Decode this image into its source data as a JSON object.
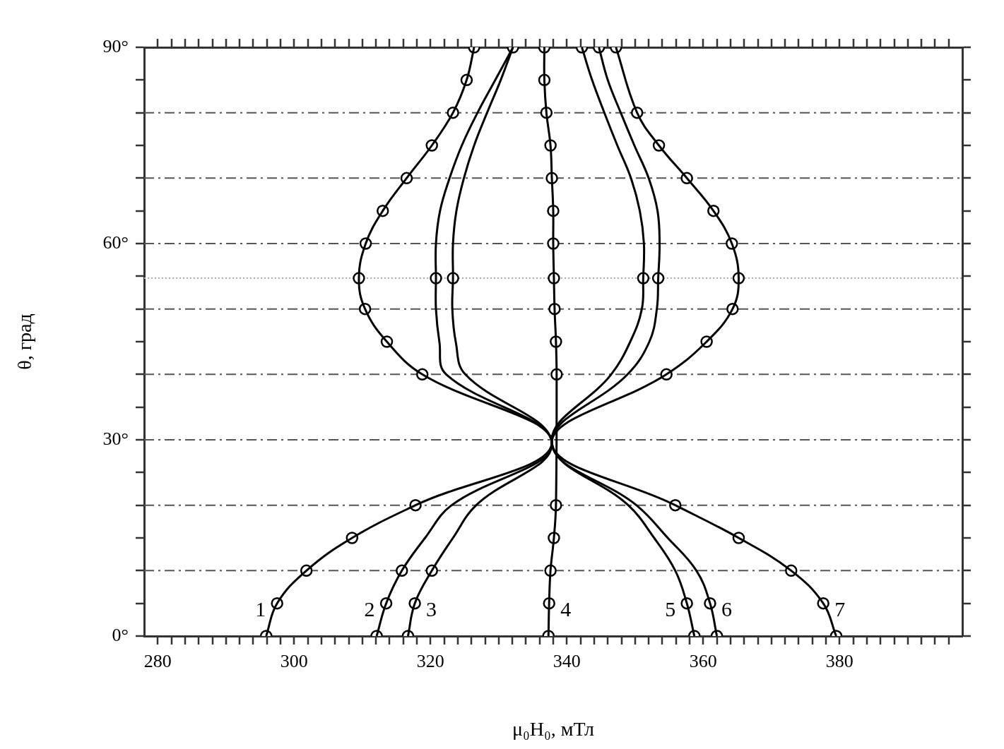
{
  "chart_data": {
    "type": "line",
    "xlabel": "μ₀H₀, мТл",
    "ylabel": "θ, град",
    "xlim": [
      278,
      398
    ],
    "xticks": [
      280,
      {
        "value": 282,
        "label": null
      },
      {
        "value": 284,
        "label": null
      },
      {
        "value": 286,
        "label": null
      },
      {
        "value": 288,
        "label": null
      },
      {
        "value": 290,
        "label": null
      },
      {
        "value": 292,
        "label": null
      },
      {
        "value": 294,
        "label": null
      },
      {
        "value": 296,
        "label": null
      },
      {
        "value": 298,
        "label": null
      },
      300,
      {
        "value": 302,
        "label": null
      },
      {
        "value": 304,
        "label": null
      },
      {
        "value": 306,
        "label": null
      },
      {
        "value": 308,
        "label": null
      },
      {
        "value": 310,
        "label": null
      },
      {
        "value": 312,
        "label": null
      },
      {
        "value": 314,
        "label": null
      },
      {
        "value": 316,
        "label": null
      },
      {
        "value": 318,
        "label": null
      },
      320,
      {
        "value": 322,
        "label": null
      },
      {
        "value": 324,
        "label": null
      },
      {
        "value": 326,
        "label": null
      },
      {
        "value": 328,
        "label": null
      },
      {
        "value": 330,
        "label": null
      },
      {
        "value": 332,
        "label": null
      },
      {
        "value": 334,
        "label": null
      },
      {
        "value": 336,
        "label": null
      },
      {
        "value": 338,
        "label": null
      },
      340,
      {
        "value": 342,
        "label": null
      },
      {
        "value": 344,
        "label": null
      },
      {
        "value": 346,
        "label": null
      },
      {
        "value": 348,
        "label": null
      },
      {
        "value": 350,
        "label": null
      },
      {
        "value": 352,
        "label": null
      },
      {
        "value": 354,
        "label": null
      },
      {
        "value": 356,
        "label": null
      },
      {
        "value": 358,
        "label": null
      },
      360,
      {
        "value": 362,
        "label": null
      },
      {
        "value": 364,
        "label": null
      },
      {
        "value": 366,
        "label": null
      },
      {
        "value": 368,
        "label": null
      },
      {
        "value": 370,
        "label": null
      },
      {
        "value": 372,
        "label": null
      },
      {
        "value": 374,
        "label": null
      },
      {
        "value": 376,
        "label": null
      },
      {
        "value": 378,
        "label": null
      },
      380,
      {
        "value": 382,
        "label": null
      },
      {
        "value": 384,
        "label": null
      },
      {
        "value": 386,
        "label": null
      },
      {
        "value": 388,
        "label": null
      },
      {
        "value": 390,
        "label": null
      },
      {
        "value": 392,
        "label": null
      },
      {
        "value": 394,
        "label": null
      },
      {
        "value": 396,
        "label": null
      }
    ],
    "ylim": [
      0,
      90
    ],
    "yticks": [
      {
        "value": 0,
        "label": "0°"
      },
      {
        "value": 5,
        "label": null
      },
      {
        "value": 10,
        "label": null
      },
      {
        "value": 15,
        "label": null
      },
      {
        "value": 20,
        "label": null
      },
      {
        "value": 25,
        "label": null
      },
      {
        "value": 30,
        "label": "30°"
      },
      {
        "value": 35,
        "label": null
      },
      {
        "value": 40,
        "label": null
      },
      {
        "value": 45,
        "label": null
      },
      {
        "value": 50,
        "label": null
      },
      {
        "value": 55,
        "label": null
      },
      {
        "value": 60,
        "label": "60°"
      },
      {
        "value": 65,
        "label": null
      },
      {
        "value": 70,
        "label": null
      },
      {
        "value": 75,
        "label": null
      },
      {
        "value": 80,
        "label": null
      },
      {
        "value": 85,
        "label": null
      },
      {
        "value": 90,
        "label": "90°"
      }
    ],
    "grid": false,
    "legend": false,
    "marker": "circle",
    "line_style": "solid",
    "ref_lines": [
      {
        "axis": "y",
        "value": 10,
        "line_style": "dashed",
        "color": "#555555"
      },
      {
        "axis": "y",
        "value": 20,
        "line_style": "dashed",
        "color": "#555555"
      },
      {
        "axis": "y",
        "value": 30,
        "line_style": "dashed",
        "color": "#555555"
      },
      {
        "axis": "y",
        "value": 40,
        "line_style": "dashed",
        "color": "#555555"
      },
      {
        "axis": "y",
        "value": 50,
        "line_style": "dashed",
        "color": "#555555"
      },
      {
        "axis": "y",
        "value": 60,
        "line_style": "dashed",
        "color": "#555555"
      },
      {
        "axis": "y",
        "value": 70,
        "line_style": "dashed",
        "color": "#555555"
      },
      {
        "axis": "y",
        "value": 80,
        "line_style": "dashed",
        "color": "#555555"
      },
      {
        "axis": "y",
        "value": 54.7,
        "line_style": "dotted",
        "color": "#aaaaaa"
      }
    ],
    "series": [
      {
        "name": "1",
        "marker": "none",
        "color": "#000000",
        "x": [
          295.9,
          297.5,
          301.8,
          308.5,
          317.8,
          337.8,
          318.8,
          313.6,
          310.4,
          309.5,
          310.5,
          313.0,
          316.5,
          320.2,
          323.3,
          325.3,
          326.4
        ],
        "values": [
          0,
          5,
          10,
          15,
          20,
          29.5,
          40,
          45,
          50,
          54.7,
          60,
          65,
          70,
          75,
          80,
          85,
          90
        ]
      },
      {
        "name": "2",
        "marker": "none",
        "color": "#000000",
        "x": [
          312.1,
          313.5,
          315.8,
          319.2,
          323.1,
          337.8,
          322.3,
          321.3,
          320.8,
          320.8,
          320.8,
          321.4,
          322.8,
          324.6,
          326.9,
          329.5,
          332.1
        ],
        "values": [
          0,
          5,
          10,
          15,
          20,
          29.5,
          40,
          45,
          50,
          54.7,
          60,
          65,
          70,
          75,
          80,
          85,
          90
        ]
      },
      {
        "name": "3",
        "marker": "none",
        "color": "#000000",
        "x": [
          316.7,
          317.7,
          320.2,
          323.3,
          326.7,
          337.8,
          325.1,
          323.7,
          323.2,
          323.3,
          323.3,
          323.8,
          324.9,
          326.4,
          328.3,
          330.3,
          332.1
        ],
        "values": [
          0,
          5,
          10,
          15,
          20,
          29.5,
          40,
          45,
          50,
          54.7,
          60,
          65,
          70,
          75,
          80,
          85,
          90
        ]
      },
      {
        "name": "4",
        "marker": "none",
        "color": "#000000",
        "x": [
          337.3,
          337.4,
          337.6,
          338.1,
          338.4,
          338.5,
          338.4,
          338.2,
          338.1,
          338.0,
          338.0,
          337.8,
          337.6,
          337.0,
          336.7,
          336.7
        ],
        "values": [
          0,
          5,
          10,
          15,
          20,
          40,
          45,
          50,
          54.7,
          60,
          65,
          70,
          75,
          80,
          85,
          90
        ]
      },
      {
        "name": "5",
        "marker": "none",
        "color": "#000000",
        "x": [
          358.7,
          357.6,
          355.9,
          352.8,
          349.0,
          337.8,
          346.5,
          349.3,
          351.0,
          351.2,
          351.3,
          350.7,
          349.4,
          347.4,
          345.5,
          343.7,
          342.2
        ],
        "values": [
          0,
          5,
          10,
          15,
          20,
          29.5,
          40,
          45,
          50,
          54.7,
          60,
          65,
          70,
          75,
          80,
          85,
          90
        ]
      },
      {
        "name": "6",
        "marker": "none",
        "color": "#000000",
        "x": [
          362.0,
          361.0,
          359.0,
          354.8,
          350.2,
          337.8,
          348.9,
          352.1,
          353.2,
          353.4,
          353.6,
          353.3,
          352.0,
          349.9,
          347.9,
          346.0,
          344.7
        ],
        "values": [
          0,
          5,
          10,
          15,
          20,
          29.5,
          40,
          45,
          50,
          54.7,
          60,
          65,
          70,
          75,
          80,
          85,
          90
        ]
      },
      {
        "name": "7",
        "marker": "none",
        "color": "#000000",
        "x": [
          379.5,
          377.6,
          372.9,
          365.2,
          355.9,
          337.8,
          354.6,
          360.5,
          364.3,
          365.2,
          364.2,
          361.5,
          357.6,
          353.5,
          350.3,
          347.2
        ],
        "values": [
          0,
          5,
          10,
          15,
          20,
          29.5,
          40,
          45,
          50,
          54.7,
          60,
          65,
          70,
          75,
          80,
          90
        ]
      },
      {
        "type": "scatter",
        "color": "#000000",
        "x": [
          295.9,
          297.5,
          301.8,
          308.5,
          317.8,
          318.8,
          313.6,
          310.4,
          309.5,
          310.5,
          313.0,
          316.5,
          320.2,
          323.3,
          325.3,
          326.4
        ],
        "values": [
          0,
          5,
          10,
          15,
          20,
          40,
          45,
          50,
          54.7,
          60,
          65,
          70,
          75,
          80,
          85,
          90
        ]
      },
      {
        "type": "scatter",
        "color": "#000000",
        "x": [
          312.1,
          313.5,
          315.8,
          320.8,
          332.1
        ],
        "values": [
          0,
          5,
          10,
          54.7,
          90
        ]
      },
      {
        "type": "scatter",
        "color": "#000000",
        "x": [
          316.7,
          317.7,
          320.2,
          323.3
        ],
        "values": [
          0,
          5,
          10,
          54.7
        ]
      },
      {
        "type": "scatter",
        "color": "#000000",
        "x": [
          337.3,
          337.4,
          337.6,
          338.1,
          338.4,
          338.5,
          338.4,
          338.2,
          338.1,
          338.0,
          338.0,
          337.8,
          337.6,
          337.0,
          336.7,
          336.7
        ],
        "values": [
          0,
          5,
          10,
          15,
          20,
          40,
          45,
          50,
          54.7,
          60,
          65,
          70,
          75,
          80,
          85,
          90
        ]
      },
      {
        "type": "scatter",
        "color": "#000000",
        "x": [
          358.7,
          357.6,
          351.2,
          342.2
        ],
        "values": [
          0,
          5,
          54.7,
          90
        ]
      },
      {
        "type": "scatter",
        "color": "#000000",
        "x": [
          362.0,
          361.0,
          353.4,
          344.7
        ],
        "values": [
          0,
          5,
          54.7,
          90
        ]
      },
      {
        "type": "scatter",
        "color": "#000000",
        "x": [
          379.5,
          377.6,
          372.9,
          365.2,
          355.9,
          354.6,
          360.5,
          364.3,
          365.2,
          364.2,
          361.5,
          357.6,
          353.5,
          350.3,
          347.2
        ],
        "values": [
          0,
          5,
          10,
          15,
          20,
          40,
          45,
          50,
          54.7,
          60,
          65,
          70,
          75,
          80,
          90
        ]
      }
    ]
  }
}
